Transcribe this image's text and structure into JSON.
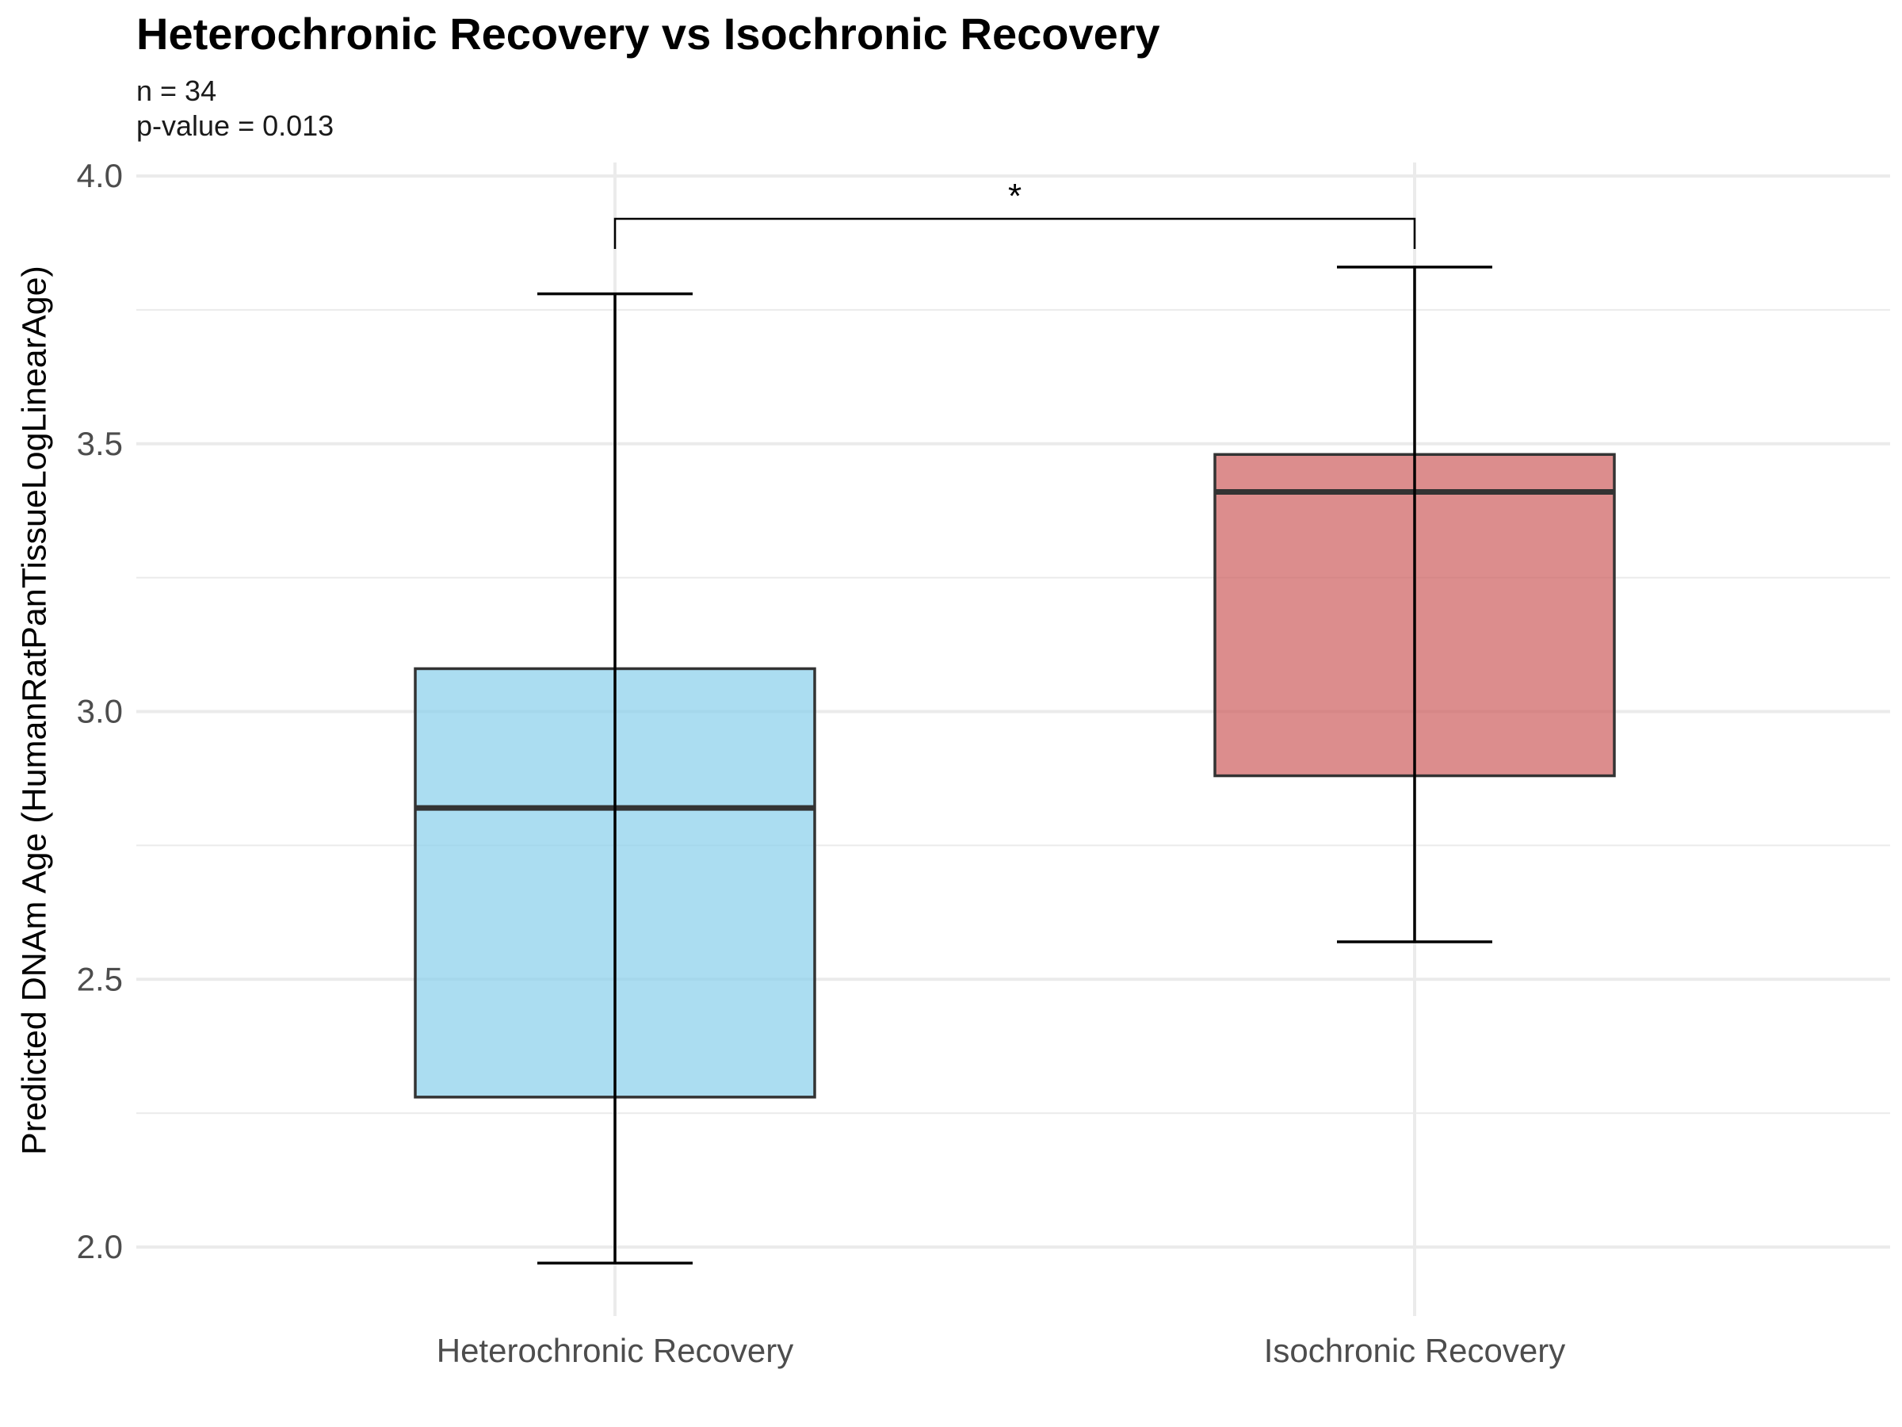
{
  "chart_data": {
    "type": "box",
    "title": "Heterochronic Recovery vs Isochronic Recovery",
    "subtitle_lines": [
      "n = 34",
      "p-value = 0.013"
    ],
    "xlabel": "",
    "ylabel": "Predicted DNAm Age (HumanRatPanTissueLogLinearAge)",
    "ylim": [
      1.9,
      4.0
    ],
    "yticks": [
      "2.0",
      "2.5",
      "3.0",
      "3.5",
      "4.0"
    ],
    "categories": [
      "Heterochronic Recovery",
      "Isochronic Recovery"
    ],
    "boxes": [
      {
        "category": "Heterochronic Recovery",
        "whisker_low": 1.97,
        "q1": 2.28,
        "median": 2.82,
        "q3": 3.08,
        "whisker_high": 3.78,
        "color": "#87CEEB"
      },
      {
        "category": "Isochronic Recovery",
        "whisker_low": 2.57,
        "q1": 2.88,
        "median": 3.41,
        "q3": 3.48,
        "whisker_high": 3.83,
        "color": "#CD5C5C"
      }
    ],
    "significance": {
      "label": "*",
      "between": [
        "Heterochronic Recovery",
        "Isochronic Recovery"
      ],
      "y": 3.92
    },
    "grid": true,
    "legend": "none"
  }
}
